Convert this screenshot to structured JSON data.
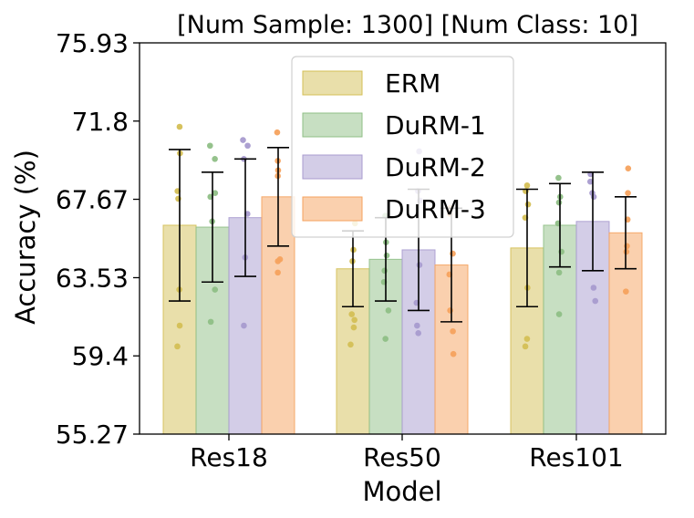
{
  "chart_data": {
    "type": "bar",
    "title": "[Num Sample: 1300]  [Num Class: 10]",
    "xlabel": "Model",
    "ylabel": "Accuracy (%)",
    "categories": [
      "Res18",
      "Res50",
      "Res101"
    ],
    "ylim": [
      55.27,
      75.93
    ],
    "yticks": [
      "55.27",
      "59.4",
      "63.53",
      "67.67",
      "71.8",
      "75.93"
    ],
    "legend_position": "top-center",
    "series": [
      {
        "name": "ERM",
        "color": "#d4bf55",
        "values": [
          66.3,
          64.0,
          65.1
        ],
        "errors": [
          4.0,
          2.0,
          3.1
        ],
        "points": [
          [
            71.5,
            70.1,
            68.1,
            67.7,
            62.9,
            61.0,
            59.9
          ],
          [
            66.4,
            65.0,
            64.4,
            61.6,
            61.3,
            60.9,
            60.0
          ],
          [
            68.4,
            68.1,
            67.4,
            66.7,
            63.0,
            60.3,
            59.9
          ]
        ]
      },
      {
        "name": "DuRM-1",
        "color": "#8fbf86",
        "values": [
          66.2,
          64.5,
          66.3
        ],
        "errors": [
          2.9,
          2.2,
          2.2
        ],
        "points": [
          [
            70.5,
            69.8,
            68.0,
            67.8,
            66.5,
            62.9,
            61.2
          ],
          [
            66.8,
            65.4,
            64.7,
            63.9,
            63.3,
            61.8,
            60.3
          ],
          [
            68.8,
            67.8,
            67.5,
            66.4,
            64.9,
            63.8,
            61.6
          ]
        ]
      },
      {
        "name": "DuRM-2",
        "color": "#a89bcf",
        "values": [
          66.7,
          65.0,
          66.5
        ],
        "errors": [
          3.1,
          3.2,
          2.6
        ],
        "points": [
          [
            70.8,
            70.5,
            69.8,
            66.9,
            64.6,
            61.0
          ],
          [
            70.2,
            68.1,
            67.6,
            64.2,
            62.2,
            61.0,
            60.6
          ],
          [
            69.0,
            68.6,
            68.0,
            67.8,
            63.0,
            62.3
          ]
        ]
      },
      {
        "name": "DuRM-3",
        "color": "#f5a25e",
        "values": [
          67.8,
          64.2,
          65.9
        ],
        "errors": [
          2.6,
          3.0,
          1.9
        ],
        "points": [
          [
            71.2,
            69.7,
            69.2,
            68.9,
            64.5,
            64.4,
            63.8
          ],
          [
            67.2,
            66.9,
            64.8,
            63.7,
            61.8,
            60.7,
            59.5
          ],
          [
            69.3,
            68.0,
            66.6,
            65.2,
            64.9,
            62.8
          ]
        ]
      }
    ]
  }
}
